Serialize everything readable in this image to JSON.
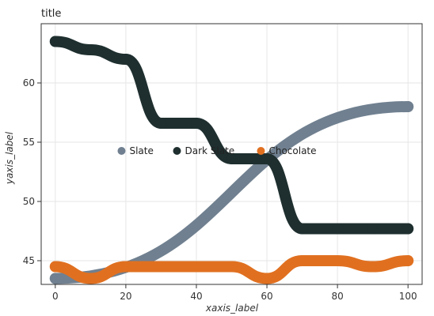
{
  "chart_data": {
    "type": "scatter",
    "title": "title",
    "xlabel": "xaxis_label",
    "ylabel": "yaxis_label",
    "xlim": [
      -4,
      104
    ],
    "ylim": [
      43,
      65
    ],
    "xticks": [
      "0",
      "20",
      "40",
      "60",
      "80",
      "100"
    ],
    "yticks": [
      "45",
      "50",
      "55",
      "60"
    ],
    "grid": true,
    "legend_position": "right",
    "series": [
      {
        "name": "Slate",
        "color": "#708090",
        "x": [
          0,
          100
        ],
        "y": [
          43.5,
          58.0
        ]
      },
      {
        "name": "Dark Slate",
        "color": "#1f2f2f",
        "x": [
          0,
          10,
          20,
          30,
          40,
          50,
          60,
          70,
          80,
          90,
          100
        ],
        "y": [
          63.5,
          62.8,
          62.0,
          56.6,
          56.6,
          53.6,
          53.6,
          47.7,
          47.7,
          47.7,
          47.7
        ]
      },
      {
        "name": "Chocolate",
        "color": "#e07020",
        "x": [
          0,
          10,
          20,
          30,
          40,
          50,
          60,
          70,
          80,
          90,
          100
        ],
        "y": [
          44.5,
          43.5,
          44.5,
          44.5,
          44.5,
          44.5,
          43.5,
          45.0,
          45.0,
          44.5,
          45.0
        ]
      }
    ]
  }
}
